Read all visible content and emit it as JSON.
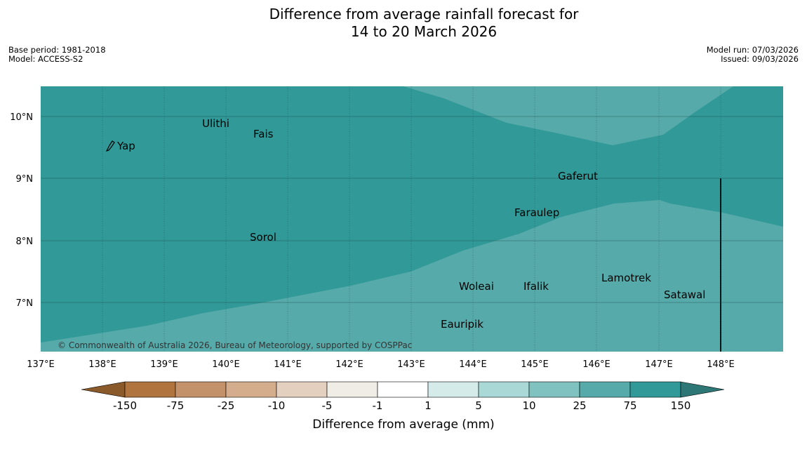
{
  "title": {
    "line1": "Difference from average rainfall forecast for",
    "line2": "14 to 20 March 2026"
  },
  "meta": {
    "base_period": "Base period: 1981-2018",
    "model": "Model: ACCESS-S2",
    "model_run": "Model run: 07/03/2026",
    "issued": "Issued: 09/03/2026"
  },
  "axes": {
    "x_ticks": [
      "137°E",
      "138°E",
      "139°E",
      "140°E",
      "141°E",
      "142°E",
      "143°E",
      "144°E",
      "145°E",
      "146°E",
      "147°E",
      "148°E"
    ],
    "y_ticks": [
      "10°N",
      "9°N",
      "8°N",
      "7°N"
    ]
  },
  "places": [
    {
      "name": "Yap"
    },
    {
      "name": "Ulithi"
    },
    {
      "name": "Fais"
    },
    {
      "name": "Gaferut"
    },
    {
      "name": "Faraulep"
    },
    {
      "name": "Sorol"
    },
    {
      "name": "Woleai"
    },
    {
      "name": "Ifalik"
    },
    {
      "name": "Lamotrek"
    },
    {
      "name": "Satawal"
    },
    {
      "name": "Eauripik"
    }
  ],
  "copyright": "© Commonwealth of Australia 2026, Bureau of Meteorology, supported by COSPPac",
  "colorbar": {
    "label": "Difference from average (mm)",
    "ticks": [
      "-150",
      "-75",
      "-25",
      "-10",
      "-5",
      "-1",
      "1",
      "5",
      "10",
      "25",
      "75",
      "150"
    ],
    "colors": [
      "#8b5a2b",
      "#b0743e",
      "#c4926a",
      "#d4ae8c",
      "#e4d0bf",
      "#f0ece6",
      "#ffffff",
      "#d5ebea",
      "#a9d8d6",
      "#80c2bf",
      "#57aaaa",
      "#319998",
      "#2e7777"
    ]
  },
  "chart_data": {
    "type": "map",
    "legend": "Difference from average (mm)",
    "regions": [
      {
        "category": "75 to 150 mm",
        "color": "#319998",
        "extent": "northwest and central"
      },
      {
        "category": "25 to 75 mm",
        "color": "#57aaaa",
        "extent": "southeast and northeast"
      }
    ],
    "lon_range": [
      137,
      149
    ],
    "lat_range": [
      6.2,
      10.5
    ]
  }
}
